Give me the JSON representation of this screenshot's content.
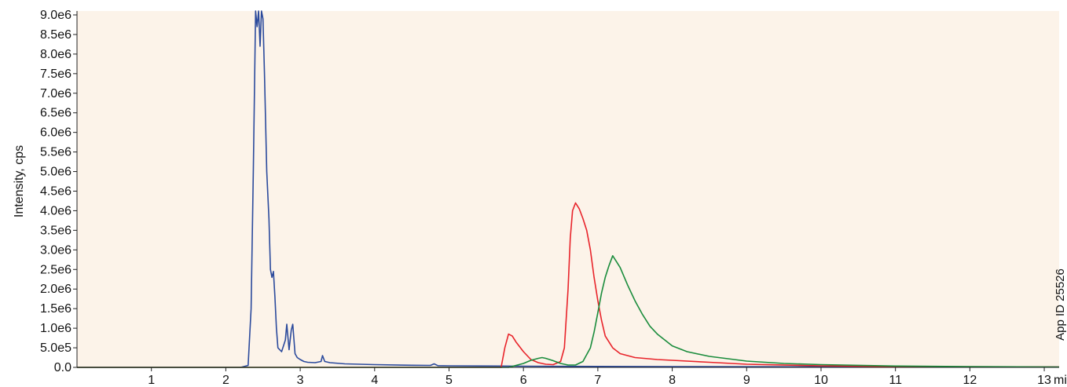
{
  "chart_data": {
    "type": "line",
    "ylabel": "Intensity, cps",
    "xlabel": "",
    "x_unit": "min",
    "xlim": [
      0,
      13.2
    ],
    "ylim": [
      0,
      9100000
    ],
    "grid": false,
    "background_color": "#fcf3e9",
    "x_ticks": [
      1,
      2,
      3,
      4,
      5,
      6,
      7,
      8,
      9,
      10,
      11,
      12,
      13
    ],
    "x_tick_labels": [
      "1",
      "2",
      "3",
      "4",
      "5",
      "6",
      "7",
      "8",
      "9",
      "10",
      "11",
      "12",
      "13"
    ],
    "y_ticks": [
      0,
      500000,
      1000000,
      1500000,
      2000000,
      2500000,
      3000000,
      3500000,
      4000000,
      4500000,
      5000000,
      5500000,
      6000000,
      6500000,
      7000000,
      7500000,
      8000000,
      8500000,
      9000000
    ],
    "y_tick_labels": [
      "0.0",
      "5.0e5",
      "1.0e6",
      "1.5e6",
      "2.0e6",
      "2.5e6",
      "3.0e6",
      "3.5e6",
      "4.0e6",
      "4.5e6",
      "5.0e6",
      "5.5e6",
      "6.0e6",
      "6.5e6",
      "7.0e6",
      "7.5e6",
      "8.0e6",
      "8.5e6",
      "9.0e6"
    ],
    "series": [
      {
        "color": "#2b4a9c",
        "x": [
          0,
          2.0,
          2.2,
          2.3,
          2.34,
          2.37,
          2.4,
          2.42,
          2.44,
          2.46,
          2.48,
          2.5,
          2.52,
          2.55,
          2.58,
          2.6,
          2.62,
          2.64,
          2.66,
          2.68,
          2.7,
          2.75,
          2.8,
          2.82,
          2.85,
          2.88,
          2.9,
          2.93,
          2.96,
          3.0,
          3.05,
          3.1,
          3.2,
          3.28,
          3.3,
          3.33,
          3.4,
          3.6,
          4.0,
          4.5,
          4.75,
          4.8,
          4.85,
          5.0,
          6.0,
          7.0,
          8.0,
          10.0,
          13.2
        ],
        "y": [
          0,
          0,
          0,
          50000,
          1500000,
          5000000,
          9100000,
          8700000,
          9100000,
          8200000,
          9100000,
          8900000,
          7500000,
          5000000,
          3800000,
          2500000,
          2300000,
          2450000,
          1800000,
          1000000,
          500000,
          400000,
          700000,
          1100000,
          450000,
          950000,
          1100000,
          350000,
          250000,
          200000,
          150000,
          130000,
          120000,
          150000,
          300000,
          150000,
          120000,
          90000,
          70000,
          55000,
          50000,
          90000,
          45000,
          40000,
          30000,
          25000,
          20000,
          15000,
          10000
        ]
      },
      {
        "color": "#e8232a",
        "x": [
          0,
          5.5,
          5.7,
          5.75,
          5.8,
          5.85,
          5.9,
          6.0,
          6.1,
          6.2,
          6.3,
          6.4,
          6.5,
          6.55,
          6.6,
          6.63,
          6.66,
          6.7,
          6.75,
          6.8,
          6.85,
          6.9,
          6.95,
          7.0,
          7.05,
          7.1,
          7.2,
          7.3,
          7.5,
          7.8,
          8.0,
          8.5,
          9.0,
          10.0,
          11.0,
          13.2
        ],
        "y": [
          0,
          0,
          0,
          500000,
          850000,
          800000,
          650000,
          400000,
          200000,
          120000,
          80000,
          70000,
          150000,
          500000,
          2000000,
          3300000,
          4000000,
          4200000,
          4050000,
          3800000,
          3500000,
          3000000,
          2300000,
          1700000,
          1200000,
          800000,
          500000,
          350000,
          250000,
          200000,
          180000,
          130000,
          80000,
          40000,
          20000,
          10000
        ]
      },
      {
        "color": "#1a8c3c",
        "x": [
          0,
          5.8,
          6.0,
          6.1,
          6.2,
          6.25,
          6.3,
          6.4,
          6.5,
          6.6,
          6.7,
          6.8,
          6.9,
          6.95,
          7.0,
          7.05,
          7.1,
          7.15,
          7.2,
          7.25,
          7.3,
          7.4,
          7.5,
          7.6,
          7.7,
          7.8,
          7.9,
          8.0,
          8.2,
          8.5,
          9.0,
          9.5,
          10.0,
          11.0,
          12.0,
          13.2
        ],
        "y": [
          0,
          0,
          100000,
          180000,
          230000,
          250000,
          230000,
          170000,
          100000,
          60000,
          60000,
          150000,
          500000,
          900000,
          1400000,
          1900000,
          2300000,
          2600000,
          2850000,
          2700000,
          2550000,
          2100000,
          1700000,
          1350000,
          1050000,
          850000,
          700000,
          550000,
          400000,
          280000,
          160000,
          100000,
          70000,
          35000,
          20000,
          10000
        ]
      }
    ]
  },
  "side_note": "App ID 25526"
}
